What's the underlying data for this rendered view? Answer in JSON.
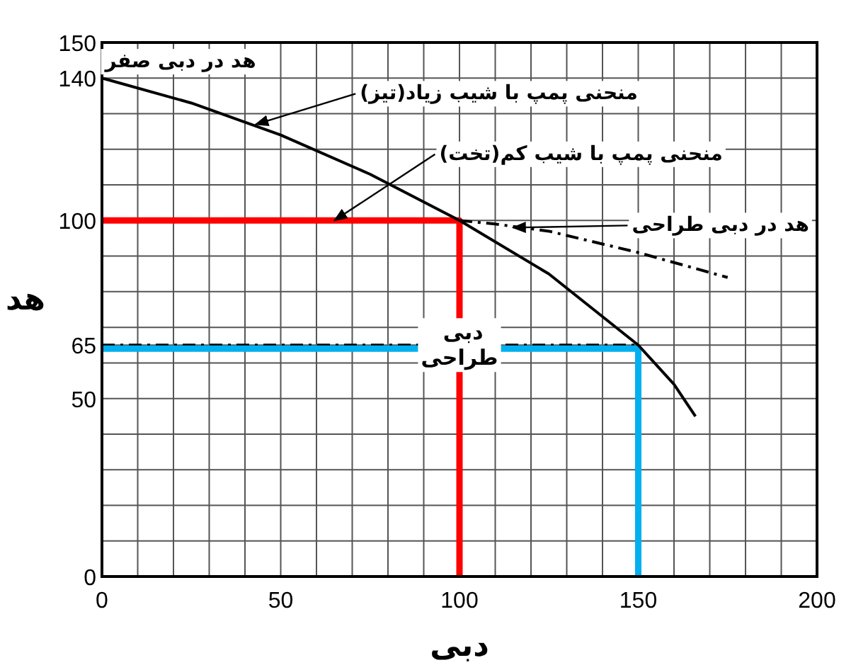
{
  "chart_data": {
    "type": "line",
    "xlabel": "دبی",
    "ylabel": "هد",
    "xlim": [
      0,
      200
    ],
    "ylim": [
      0,
      150
    ],
    "xticks": [
      0,
      {
        "value": 10,
        "label": null
      },
      {
        "value": 20,
        "label": null
      },
      {
        "value": 30,
        "label": null
      },
      {
        "value": 40,
        "label": null
      },
      50,
      {
        "value": 60,
        "label": null
      },
      {
        "value": 70,
        "label": null
      },
      {
        "value": 80,
        "label": null
      },
      {
        "value": 90,
        "label": null
      },
      100,
      {
        "value": 110,
        "label": null
      },
      {
        "value": 120,
        "label": null
      },
      {
        "value": 130,
        "label": null
      },
      {
        "value": 140,
        "label": null
      },
      150,
      {
        "value": 160,
        "label": null
      },
      {
        "value": 170,
        "label": null
      },
      {
        "value": 180,
        "label": null
      },
      {
        "value": 190,
        "label": null
      },
      200
    ],
    "yticks": [
      0,
      {
        "value": 10,
        "label": null
      },
      {
        "value": 20,
        "label": null
      },
      {
        "value": 30,
        "label": null
      },
      {
        "value": 40,
        "label": null
      },
      50,
      {
        "value": 60,
        "label": null
      },
      65,
      {
        "value": 70,
        "label": null
      },
      {
        "value": 80,
        "label": null
      },
      {
        "value": 90,
        "label": null
      },
      100,
      {
        "value": 110,
        "label": null
      },
      {
        "value": 120,
        "label": null
      },
      {
        "value": 130,
        "label": null
      },
      140,
      150
    ],
    "grid": true,
    "series": [
      {
        "color": "#ff0000",
        "x": [
          0,
          100,
          100
        ],
        "values": [
          100,
          100,
          0
        ]
      },
      {
        "color": "#000000",
        "line_style": "dashed",
        "x": [
          0,
          150
        ],
        "values": [
          65,
          65
        ]
      },
      {
        "color": "#00b0f0",
        "x": [
          0,
          150,
          150
        ],
        "values": [
          64,
          64,
          0
        ]
      },
      {
        "color": "#000000",
        "x": [
          0,
          25,
          50,
          75,
          100,
          125,
          150,
          160,
          166
        ],
        "values": [
          140,
          133,
          124,
          113,
          100,
          85,
          65,
          54,
          45
        ]
      },
      {
        "color": "#000000",
        "line_style": "dashed",
        "x": [
          100,
          110,
          125,
          150,
          175
        ],
        "values": [
          100,
          99,
          97,
          91,
          84
        ]
      }
    ],
    "annotations": [
      {
        "text": "هد در دبی صفر",
        "x": 0,
        "y": 140
      },
      {
        "text": "منحنی پمپ با شیب زیاد(تیز)",
        "x": 43,
        "y": 127
      },
      {
        "text": "منحنی پمپ با شیب کم(تخت)",
        "x": 65,
        "y": 100
      },
      {
        "text": "هد در دبی طراحی",
        "x": 115,
        "y": 98
      },
      {
        "text": "دبی طراحی",
        "x": 100,
        "y": 65
      }
    ]
  }
}
